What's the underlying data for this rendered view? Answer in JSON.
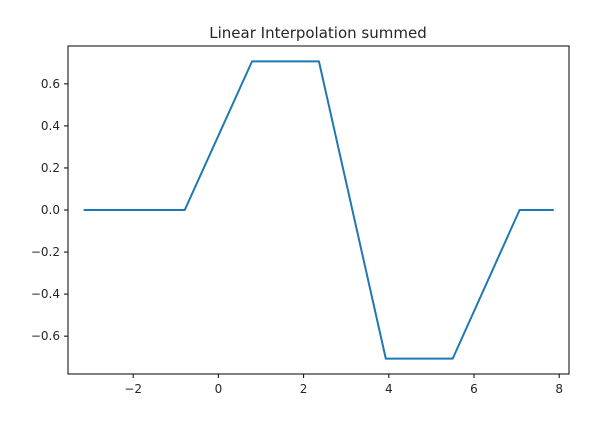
{
  "chart_data": {
    "type": "line",
    "title": "Linear Interpolation summed",
    "xlabel": "",
    "ylabel": "",
    "xlim": [
      -3.53,
      8.23
    ],
    "ylim": [
      -0.78,
      0.78
    ],
    "x_ticks": [
      -2,
      0,
      2,
      4,
      6,
      8
    ],
    "x_tick_labels": [
      "−2",
      "0",
      "2",
      "4",
      "6",
      "8"
    ],
    "y_ticks": [
      0.6,
      0.4,
      0.2,
      0.0,
      -0.2,
      -0.4,
      -0.6
    ],
    "y_tick_labels": [
      "0.6",
      "0.4",
      "0.2",
      "0.0",
      "−0.2",
      "−0.4",
      "−0.6"
    ],
    "grid": false,
    "series": [
      {
        "color": "#1f77b4",
        "x": [
          -3.14,
          -0.79,
          0.79,
          2.36,
          3.93,
          5.5,
          7.07,
          7.85
        ],
        "y": [
          0.0,
          0.0,
          0.707,
          0.707,
          -0.707,
          -0.707,
          0.0,
          0.0
        ]
      }
    ]
  }
}
